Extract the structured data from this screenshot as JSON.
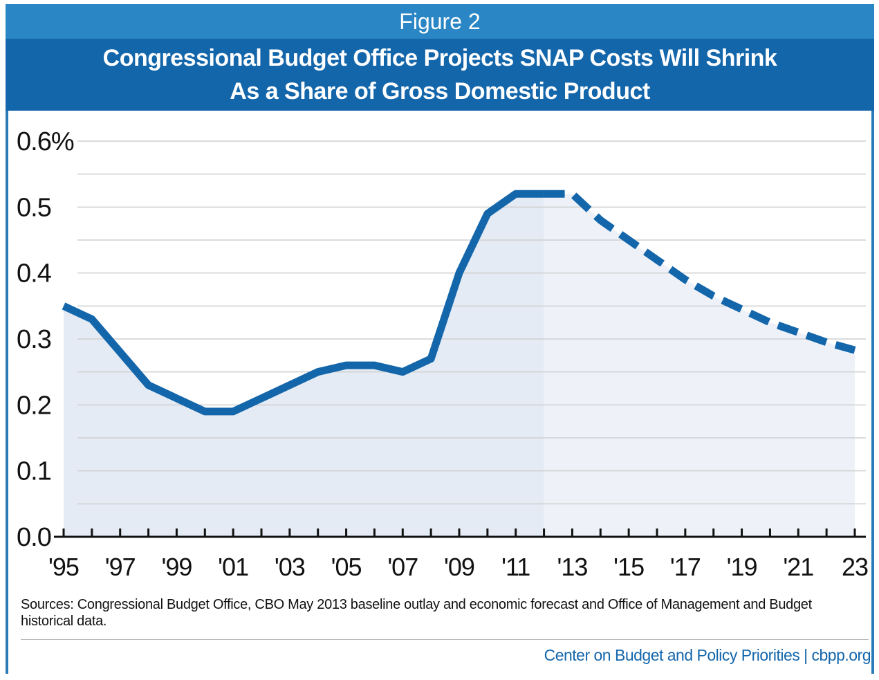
{
  "header": {
    "figure_label": "Figure 2",
    "title_line1": "Congressional Budget Office Projects SNAP Costs Will Shrink",
    "title_line2": "As a Share of Gross Domestic Product"
  },
  "footer": {
    "sources": "Sources: Congressional Budget Office, CBO May 2013 baseline outlay and economic forecast and Office of Management and Budget historical data.",
    "credit": "Center on Budget and Policy Priorities | cbpp.org"
  },
  "colors": {
    "line": "#1466ab",
    "fill_historical": "#e4ebf4",
    "fill_projected": "#eef2f8",
    "grid": "#cfcfcf"
  },
  "chart_data": {
    "type": "line",
    "title": "Congressional Budget Office Projects SNAP Costs Will Shrink As a Share of Gross Domestic Product",
    "xlabel": "",
    "ylabel": "",
    "ylim": [
      0,
      0.6
    ],
    "xlim": [
      1995,
      2023
    ],
    "y_ticks": [
      0,
      0.1,
      0.2,
      0.3,
      0.4,
      0.5,
      0.6
    ],
    "y_tick_labels": [
      "0.0",
      "0.1",
      "0.2",
      "0.3",
      "0.4",
      "0.5",
      "0.6%"
    ],
    "x_ticks": [
      1995,
      1997,
      1999,
      2001,
      2003,
      2005,
      2007,
      2009,
      2011,
      2013,
      2015,
      2017,
      2019,
      2021,
      2023
    ],
    "x_tick_labels": [
      "'95",
      "'97",
      "'99",
      "'01",
      "'03",
      "'05",
      "'07",
      "'09",
      "'11",
      "'13",
      "'15",
      "'17",
      "'19",
      "'21",
      "23"
    ],
    "grid": true,
    "series": [
      {
        "style": "solid",
        "x": [
          1995,
          1996,
          1997,
          1998,
          1999,
          2000,
          2001,
          2002,
          2003,
          2004,
          2005,
          2006,
          2007,
          2008,
          2009,
          2010,
          2011,
          2012
        ],
        "y": [
          0.35,
          0.33,
          0.28,
          0.23,
          0.21,
          0.19,
          0.19,
          0.21,
          0.23,
          0.25,
          0.26,
          0.26,
          0.25,
          0.27,
          0.4,
          0.49,
          0.52,
          0.52
        ]
      },
      {
        "style": "dashed",
        "x": [
          2012,
          2013,
          2014,
          2015,
          2016,
          2017,
          2018,
          2019,
          2020,
          2021,
          2022,
          2023
        ],
        "y": [
          0.52,
          0.52,
          0.48,
          0.45,
          0.42,
          0.39,
          0.365,
          0.345,
          0.325,
          0.31,
          0.295,
          0.283
        ]
      }
    ]
  }
}
